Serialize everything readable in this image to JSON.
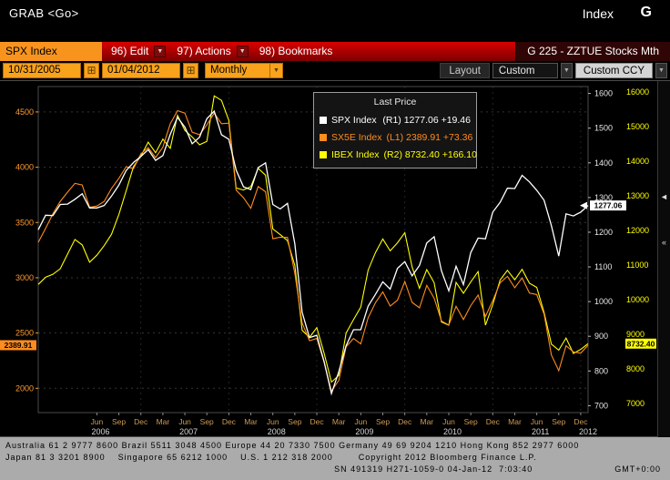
{
  "topbar": {
    "command": "GRAB  <Go>",
    "app_label": "Index",
    "app_key": "G"
  },
  "menubar": {
    "ticker": "SPX Index",
    "items": [
      {
        "label": "96) Edit"
      },
      {
        "label": "97) Actions"
      },
      {
        "label": "98) Bookmarks"
      }
    ],
    "right_label": "G 225 - ZZTUE Stocks Mth"
  },
  "toolbar": {
    "date_from": "10/31/2005",
    "date_to": "01/04/2012",
    "period": "Monthly",
    "layout_label": "Layout",
    "layout_value": "Custom",
    "ccy_button": "Custom CCY"
  },
  "legend": {
    "title": "Last Price"
  },
  "icons": {
    "chevron_down": "▼",
    "calendar": "⊞",
    "collapse": "«",
    "left_arrow": "◄"
  },
  "statusbar": {
    "line1": "Australia 61 2 9777 8600 Brazil 5511 3048 4500 Europe 44 20 7330 7500 Germany 49 69 9204 1210 Hong Kong 852 2977 6000",
    "line2": "Japan 81 3 3201 8900    Singapore 65 6212 1000    U.S. 1 212 318 2000        Copyright 2012 Bloomberg Finance L.P.",
    "line3_left": "SN 491319 H271-1059-0 04-Jan-12  7:03:40",
    "line3_right": "GMT+0:00"
  },
  "chart_data": {
    "type": "line",
    "title": "Last Price",
    "frequency": "Monthly",
    "x_start": "10/31/2005",
    "x_end": "01/04/2012",
    "series": [
      {
        "name": "SPX Index",
        "scale": "R1",
        "axis": "right1",
        "color": "#ffffff",
        "last": 1277.06,
        "last_label": "1277.06",
        "change": "+19.46",
        "values": [
          1207,
          1249,
          1248,
          1280,
          1281,
          1295,
          1311,
          1270,
          1270,
          1277,
          1304,
          1336,
          1378,
          1401,
          1418,
          1438,
          1407,
          1421,
          1482,
          1531,
          1503,
          1455,
          1474,
          1527,
          1549,
          1481,
          1468,
          1379,
          1331,
          1323,
          1386,
          1400,
          1280,
          1267,
          1283,
          1166,
          969,
          896,
          903,
          826,
          735,
          798,
          873,
          919,
          919,
          987,
          1021,
          1057,
          1036,
          1096,
          1115,
          1074,
          1104,
          1169,
          1187,
          1089,
          1031,
          1102,
          1049,
          1141,
          1183,
          1181,
          1258,
          1286,
          1327,
          1326,
          1364,
          1345,
          1321,
          1292,
          1219,
          1131,
          1253,
          1247,
          1258,
          1277.06
        ]
      },
      {
        "name": "SX5E Index",
        "scale": "L1",
        "axis": "left",
        "color": "#ff8c1e",
        "last": 2389.91,
        "last_label": "2389.91",
        "change": "+73.36",
        "values": [
          3320,
          3447,
          3579,
          3691,
          3774,
          3854,
          3839,
          3637,
          3649,
          3691,
          3808,
          3899,
          4005,
          3987,
          4120,
          4178,
          4087,
          4181,
          4392,
          4512,
          4489,
          4316,
          4294,
          4382,
          4489,
          4394,
          4399,
          3792,
          3724,
          3628,
          3825,
          3778,
          3353,
          3367,
          3365,
          3038,
          2591,
          2430,
          2451,
          2236,
          1976,
          2071,
          2375,
          2451,
          2401,
          2638,
          2775,
          2872,
          2744,
          2797,
          2966,
          2777,
          2728,
          2931,
          2816,
          2610,
          2573,
          2742,
          2622,
          2747,
          2844,
          2650,
          2793,
          2954,
          3013,
          2910,
          2999,
          2861,
          2848,
          2670,
          2302,
          2159,
          2385,
          2330,
          2317,
          2389.91
        ]
      },
      {
        "name": "IBEX Index",
        "scale": "R2",
        "axis": "right2",
        "color": "#ffff00",
        "last": 8732.4,
        "last_label": "8732.40",
        "change": "+166.10",
        "values": [
          10443,
          10654,
          10734,
          10897,
          11318,
          11742,
          11584,
          11084,
          11287,
          11565,
          11891,
          12465,
          13148,
          13849,
          14146,
          14553,
          14248,
          14641,
          14374,
          15329,
          14892,
          14702,
          14479,
          14576,
          15890,
          15759,
          15182,
          13229,
          13170,
          13269,
          13798,
          13600,
          12046,
          11881,
          11707,
          10988,
          9116,
          8910,
          9196,
          8450,
          7621,
          7815,
          9038,
          9424,
          9787,
          10855,
          11365,
          11756,
          11414,
          11645,
          11940,
          10948,
          10333,
          10871,
          10492,
          9359,
          9264,
          10499,
          10187,
          10514,
          10812,
          9267,
          9859,
          10571,
          10851,
          10576,
          10879,
          10476,
          10359,
          9630,
          8719,
          8546,
          8895,
          8449,
          8566,
          8732.4
        ]
      }
    ],
    "axes": {
      "left": {
        "color": "#ff9b2e",
        "range": [
          1780,
          4730
        ],
        "ticks": [
          2000,
          2500,
          3000,
          3500,
          4000,
          4500
        ]
      },
      "right1": {
        "color": "#e8e8e8",
        "range": [
          680,
          1620
        ],
        "ticks": [
          700,
          800,
          900,
          1000,
          1100,
          1200,
          1300,
          1400,
          1500,
          1600
        ]
      },
      "right2": {
        "color": "#ffff00",
        "range": [
          6740,
          16160
        ],
        "ticks": [
          7000,
          8000,
          9000,
          10000,
          11000,
          12000,
          13000,
          14000,
          15000,
          16000
        ]
      }
    },
    "x_ticks": [
      {
        "i": 8,
        "label": "Jun"
      },
      {
        "i": 11,
        "label": "Sep"
      },
      {
        "i": 14,
        "label": "Dec"
      },
      {
        "i": 17,
        "label": "Mar"
      },
      {
        "i": 20,
        "label": "Jun"
      },
      {
        "i": 23,
        "label": "Sep"
      },
      {
        "i": 26,
        "label": "Dec"
      },
      {
        "i": 29,
        "label": "Mar"
      },
      {
        "i": 32,
        "label": "Jun"
      },
      {
        "i": 35,
        "label": "Sep"
      },
      {
        "i": 38,
        "label": "Dec"
      },
      {
        "i": 41,
        "label": "Mar"
      },
      {
        "i": 44,
        "label": "Jun"
      },
      {
        "i": 47,
        "label": "Sep"
      },
      {
        "i": 50,
        "label": "Dec"
      },
      {
        "i": 53,
        "label": "Mar"
      },
      {
        "i": 56,
        "label": "Jun"
      },
      {
        "i": 59,
        "label": "Sep"
      },
      {
        "i": 62,
        "label": "Dec"
      },
      {
        "i": 65,
        "label": "Mar"
      },
      {
        "i": 68,
        "label": "Jun"
      },
      {
        "i": 71,
        "label": "Sep"
      },
      {
        "i": 74,
        "label": "Dec"
      }
    ],
    "x_years": [
      {
        "i": 8.5,
        "label": "2006"
      },
      {
        "i": 20.5,
        "label": "2007"
      },
      {
        "i": 32.5,
        "label": "2008"
      },
      {
        "i": 44.5,
        "label": "2009"
      },
      {
        "i": 56.5,
        "label": "2010"
      },
      {
        "i": 68.5,
        "label": "2011"
      },
      {
        "i": 75,
        "label": "2012"
      }
    ],
    "grid_v": [
      14,
      26,
      38,
      50,
      62,
      74
    ]
  }
}
